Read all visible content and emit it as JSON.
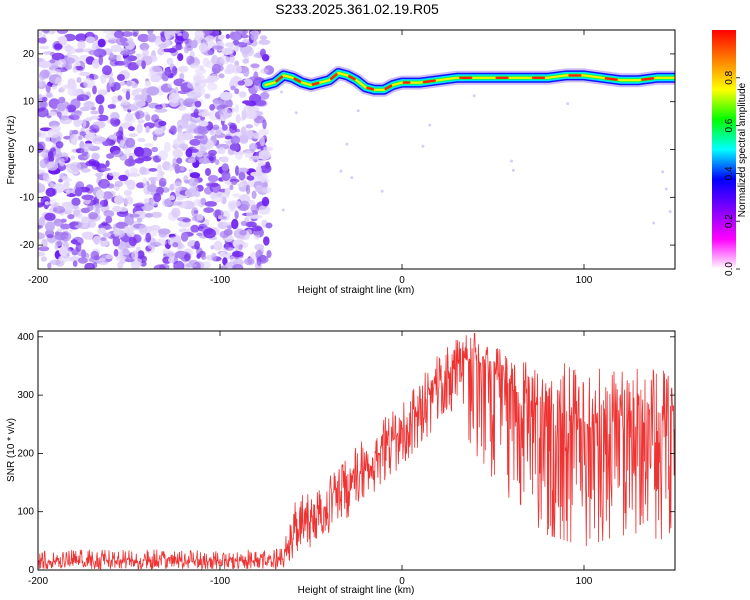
{
  "title": "S233.2025.361.02.19.R05",
  "chart_data": [
    {
      "type": "heatmap",
      "xlabel": "Height of straight line (km)",
      "ylabel": "Frequency (Hz)",
      "xlim": [
        -200,
        150
      ],
      "ylim": [
        -25,
        25
      ],
      "x_ticks": [
        -200,
        -100,
        0,
        100
      ],
      "y_ticks": [
        -20,
        -10,
        0,
        10,
        20
      ],
      "colorbar": {
        "label": "Normalized spectral amplitude",
        "range": [
          0.0,
          1.0
        ],
        "ticks": [
          0.0,
          0.2,
          0.4,
          0.6,
          0.8
        ],
        "tick_labels": [
          "0.0",
          "0.2",
          "0.4",
          "0.6",
          "0.8"
        ],
        "colors": [
          "#ffffff",
          "#ff00ff",
          "#8000ff",
          "#0000ff",
          "#00ffff",
          "#00ff00",
          "#ffff00",
          "#ff8000",
          "#ff0000"
        ]
      },
      "noise_region_x": [
        -200,
        -73
      ],
      "signal_track": {
        "x": [
          -75,
          -70,
          -65,
          -60,
          -55,
          -50,
          -45,
          -40,
          -35,
          -30,
          -25,
          -20,
          -15,
          -10,
          -5,
          0,
          5,
          10,
          20,
          30,
          40,
          50,
          60,
          70,
          80,
          90,
          100,
          110,
          120,
          130,
          140,
          150
        ],
        "frequency_hz": [
          13.5,
          14.0,
          15.5,
          15.0,
          14.0,
          13.5,
          14.0,
          14.5,
          16.0,
          15.5,
          14.5,
          13.0,
          12.5,
          12.5,
          13.5,
          14.0,
          14.0,
          14.0,
          14.5,
          15.0,
          15.0,
          15.0,
          15.0,
          15.0,
          15.0,
          15.5,
          15.5,
          15.0,
          14.5,
          14.5,
          15.0,
          15.0
        ]
      }
    },
    {
      "type": "line",
      "xlabel": "Height of straight line (km)",
      "ylabel": "SNR (10 * v/v)",
      "xlim": [
        -200,
        150
      ],
      "ylim": [
        0,
        410
      ],
      "x_ticks": [
        -200,
        -100,
        0,
        100
      ],
      "y_ticks": [
        0,
        100,
        200,
        300,
        400
      ],
      "series": [
        {
          "name": "SNR",
          "color": "#ee3333",
          "envelope": {
            "x": [
              -200,
              -160,
              -120,
              -80,
              -65,
              -60,
              -40,
              -20,
              0,
              20,
              30,
              40,
              45,
              60,
              80,
              100,
              120,
              150
            ],
            "median": [
              15,
              16,
              15,
              16,
              18,
              60,
              110,
              170,
              240,
              320,
              350,
              360,
              355,
              310,
              270,
              250,
              250,
              250
            ],
            "upper": [
              35,
              35,
              35,
              35,
              40,
              120,
              160,
              230,
              290,
              370,
              400,
              410,
              395,
              370,
              360,
              350,
              350,
              340
            ],
            "lower": [
              2,
              2,
              2,
              2,
              2,
              20,
              60,
              120,
              180,
              250,
              270,
              200,
              180,
              110,
              60,
              40,
              60,
              50
            ]
          }
        }
      ]
    }
  ]
}
